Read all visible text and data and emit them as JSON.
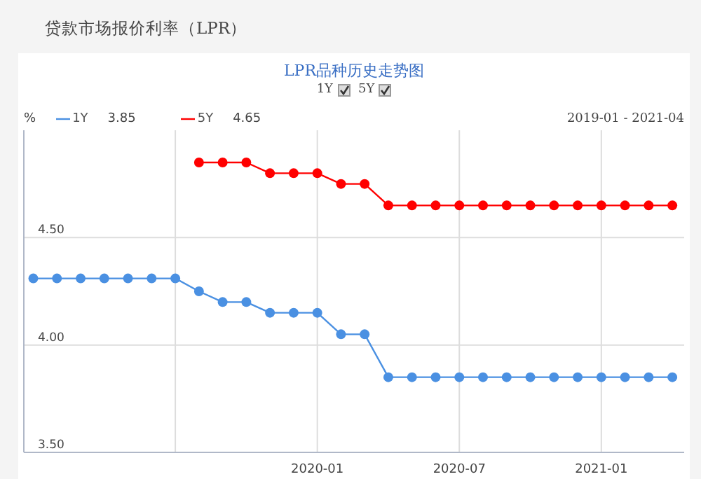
{
  "chart_data": {
    "type": "line",
    "title": "贷款市场报价利率（LPR）",
    "subtitle": "LPR品种历史走势图",
    "ylabel": "%",
    "annotations": [
      "3.85",
      "4.65",
      "2019-01 - 2021-04"
    ],
    "x": [
      "2019-01",
      "2019-02",
      "2019-03",
      "2019-04",
      "2019-05",
      "2019-06",
      "2019-07",
      "2019-08",
      "2019-09",
      "2019-10",
      "2019-11",
      "2019-12",
      "2020-01",
      "2020-02",
      "2020-03",
      "2020-04",
      "2020-05",
      "2020-06",
      "2020-07",
      "2020-08",
      "2020-09",
      "2020-10",
      "2020-11",
      "2020-12",
      "2021-01",
      "2021-02",
      "2021-03",
      "2021-04"
    ],
    "series": [
      {
        "name": "1Y",
        "color": "#4a90e2",
        "values": [
          4.31,
          4.31,
          4.31,
          4.31,
          4.31,
          4.31,
          4.31,
          4.25,
          4.2,
          4.2,
          4.15,
          4.15,
          4.15,
          4.05,
          4.05,
          3.85,
          3.85,
          3.85,
          3.85,
          3.85,
          3.85,
          3.85,
          3.85,
          3.85,
          3.85,
          3.85,
          3.85,
          3.85
        ]
      },
      {
        "name": "5Y",
        "color": "#ff0000",
        "values": [
          null,
          null,
          null,
          null,
          null,
          null,
          null,
          4.85,
          4.85,
          4.85,
          4.8,
          4.8,
          4.8,
          4.75,
          4.75,
          4.65,
          4.65,
          4.65,
          4.65,
          4.65,
          4.65,
          4.65,
          4.65,
          4.65,
          4.65,
          4.65,
          4.65,
          4.65
        ]
      }
    ],
    "xlim": [
      "2018-12-19",
      "2021-04-16"
    ],
    "xticks": [
      {
        "value": "2019-07",
        "label": null
      },
      "2020-01",
      "2020-07",
      "2021-01"
    ],
    "ylim": [
      3.5,
      5.0
    ],
    "yticks": [
      {
        "value": 3.5,
        "label": "3.50"
      },
      {
        "value": 4.0,
        "label": "4.00"
      },
      {
        "value": 4.5,
        "label": "4.50"
      }
    ],
    "grid": true,
    "legend": "top left",
    "marker": "circle",
    "line_style": "solid"
  }
}
